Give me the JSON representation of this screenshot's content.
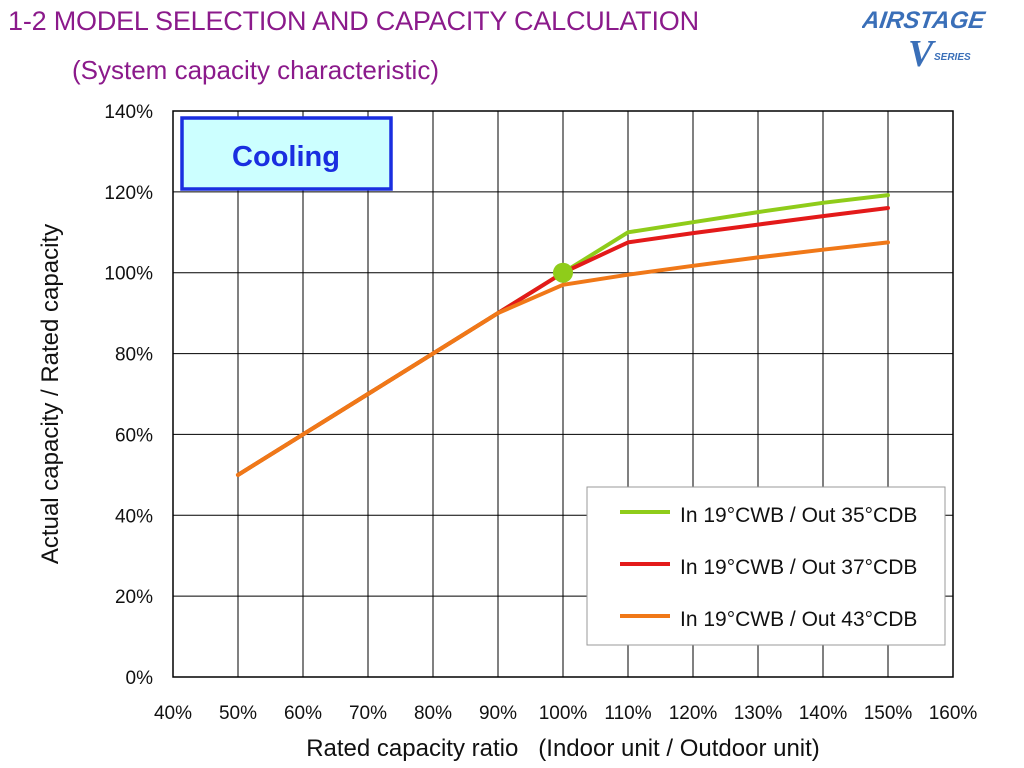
{
  "header": {
    "title": "1-2 MODEL SELECTION AND CAPACITY CALCULATION",
    "subtitle": "(System capacity characteristic)"
  },
  "logo": {
    "brand": "AIRSTAGE",
    "series_letter": "V",
    "series_word": "SERIES",
    "colors": {
      "brand": "#3a6fb8",
      "accent": "#7fb6e8"
    }
  },
  "chart_data": {
    "type": "line",
    "xlabel": "Rated capacity ratio   (Indoor unit / Outdoor unit)",
    "ylabel": "Actual capacity / Rated capacity",
    "xlim": [
      40,
      160
    ],
    "ylim": [
      0,
      140
    ],
    "x_ticks": [
      "40%",
      "50%",
      "60%",
      "70%",
      "80%",
      "90%",
      "100%",
      "110%",
      "120%",
      "130%",
      "140%",
      "150%",
      "160%"
    ],
    "y_ticks": [
      "0%",
      "20%",
      "40%",
      "60%",
      "80%",
      "100%",
      "120%",
      "140%"
    ],
    "grid": true,
    "annotation": "Cooling",
    "marker_point": {
      "x": 100,
      "y": 100,
      "color": "#8fcc1a"
    },
    "series": [
      {
        "name": "In 19°CWB / Out 35°CDB",
        "color": "#8fcc1a",
        "x": [
          50,
          60,
          70,
          80,
          90,
          100,
          110,
          120,
          130,
          140,
          150
        ],
        "y": [
          50,
          60,
          70,
          80,
          90,
          100,
          110,
          112.5,
          115,
          117.3,
          119.2
        ]
      },
      {
        "name": "In 19°CWB / Out 37°CDB",
        "color": "#e31a1a",
        "x": [
          50,
          60,
          70,
          80,
          90,
          100,
          110,
          120,
          130,
          140,
          150
        ],
        "y": [
          50,
          60,
          70,
          80,
          90,
          100,
          107.5,
          109.8,
          111.9,
          114,
          116
        ]
      },
      {
        "name": "In 19°CWB / Out 43°CDB",
        "color": "#f07818",
        "x": [
          50,
          60,
          70,
          80,
          90,
          100,
          110,
          120,
          130,
          140,
          150
        ],
        "y": [
          50,
          60,
          70,
          80,
          90,
          97,
          99.5,
          101.7,
          103.8,
          105.7,
          107.5
        ]
      }
    ],
    "legend_position": "bottom-right"
  }
}
